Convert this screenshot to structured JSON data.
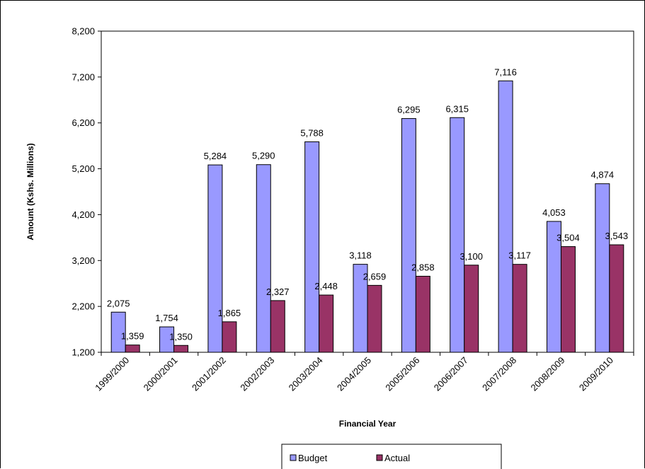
{
  "chart_data": {
    "type": "bar",
    "categories": [
      "1999/2000",
      "2000/2001",
      "2001/2002",
      "2002/2003",
      "2003/2004",
      "2004/2005",
      "2005/2006",
      "2006/2007",
      "2007/2008",
      "2008/2009",
      "2009/2010"
    ],
    "series": [
      {
        "name": "Budget",
        "color": "#9999ff",
        "values": [
          2075,
          1754,
          5284,
          5290,
          5788,
          3118,
          6295,
          6315,
          7116,
          4053,
          4874
        ],
        "labels": [
          "2,075",
          "1,754",
          "5,284",
          "5,290",
          "5,788",
          "3,118",
          "6,295",
          "6,315",
          "7,116",
          "4,053",
          "4,874"
        ]
      },
      {
        "name": "Actual",
        "color": "#993366",
        "values": [
          1359,
          1350,
          1865,
          2327,
          2448,
          2659,
          2858,
          3100,
          3117,
          3504,
          3543
        ],
        "labels": [
          "1,359",
          "1,350",
          "1,865",
          "2,327",
          "2,448",
          "2,659",
          "2,858",
          "3,100",
          "3,117",
          "3,504",
          "3,543"
        ]
      }
    ],
    "xlabel": "Financial Year",
    "ylabel": "Amount (Kshs. Millions)",
    "ylim": [
      1200,
      8200
    ],
    "yticks": [
      1200,
      2200,
      3200,
      4200,
      5200,
      6200,
      7200,
      8200
    ],
    "ytick_labels": [
      "1,200",
      "2,200",
      "3,200",
      "4,200",
      "5,200",
      "6,200",
      "7,200",
      "8,200"
    ],
    "grid": false,
    "legend_position": "bottom"
  }
}
